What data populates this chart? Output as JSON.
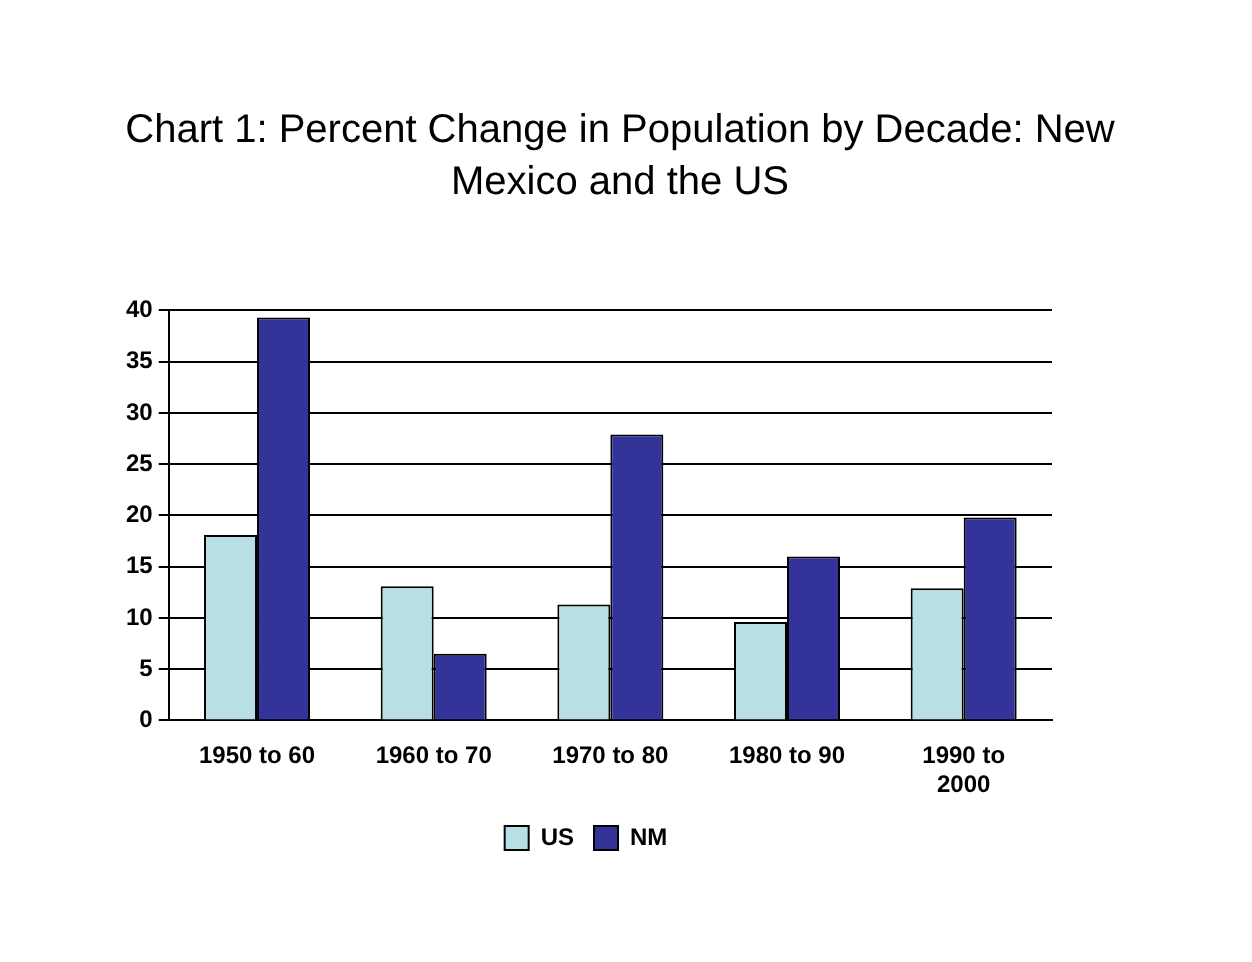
{
  "chart_data": {
    "type": "bar",
    "title": "Chart 1: Percent Change in Population by Decade: New Mexico and the US",
    "categories": [
      "1950 to 60",
      "1960 to 70",
      "1970 to 80",
      "1980 to 90",
      "1990 to 2000"
    ],
    "series": [
      {
        "name": "US",
        "color": "#b8e0e4",
        "values": [
          18.1,
          13.1,
          11.3,
          9.6,
          12.9
        ]
      },
      {
        "name": "NM",
        "color": "#333399",
        "values": [
          39.3,
          6.5,
          27.9,
          16,
          19.8
        ]
      }
    ],
    "ylim": [
      0,
      40
    ],
    "yticks": [
      0,
      5,
      10,
      15,
      20,
      25,
      30,
      35,
      40
    ],
    "grid": "y",
    "legend": "bottom"
  }
}
